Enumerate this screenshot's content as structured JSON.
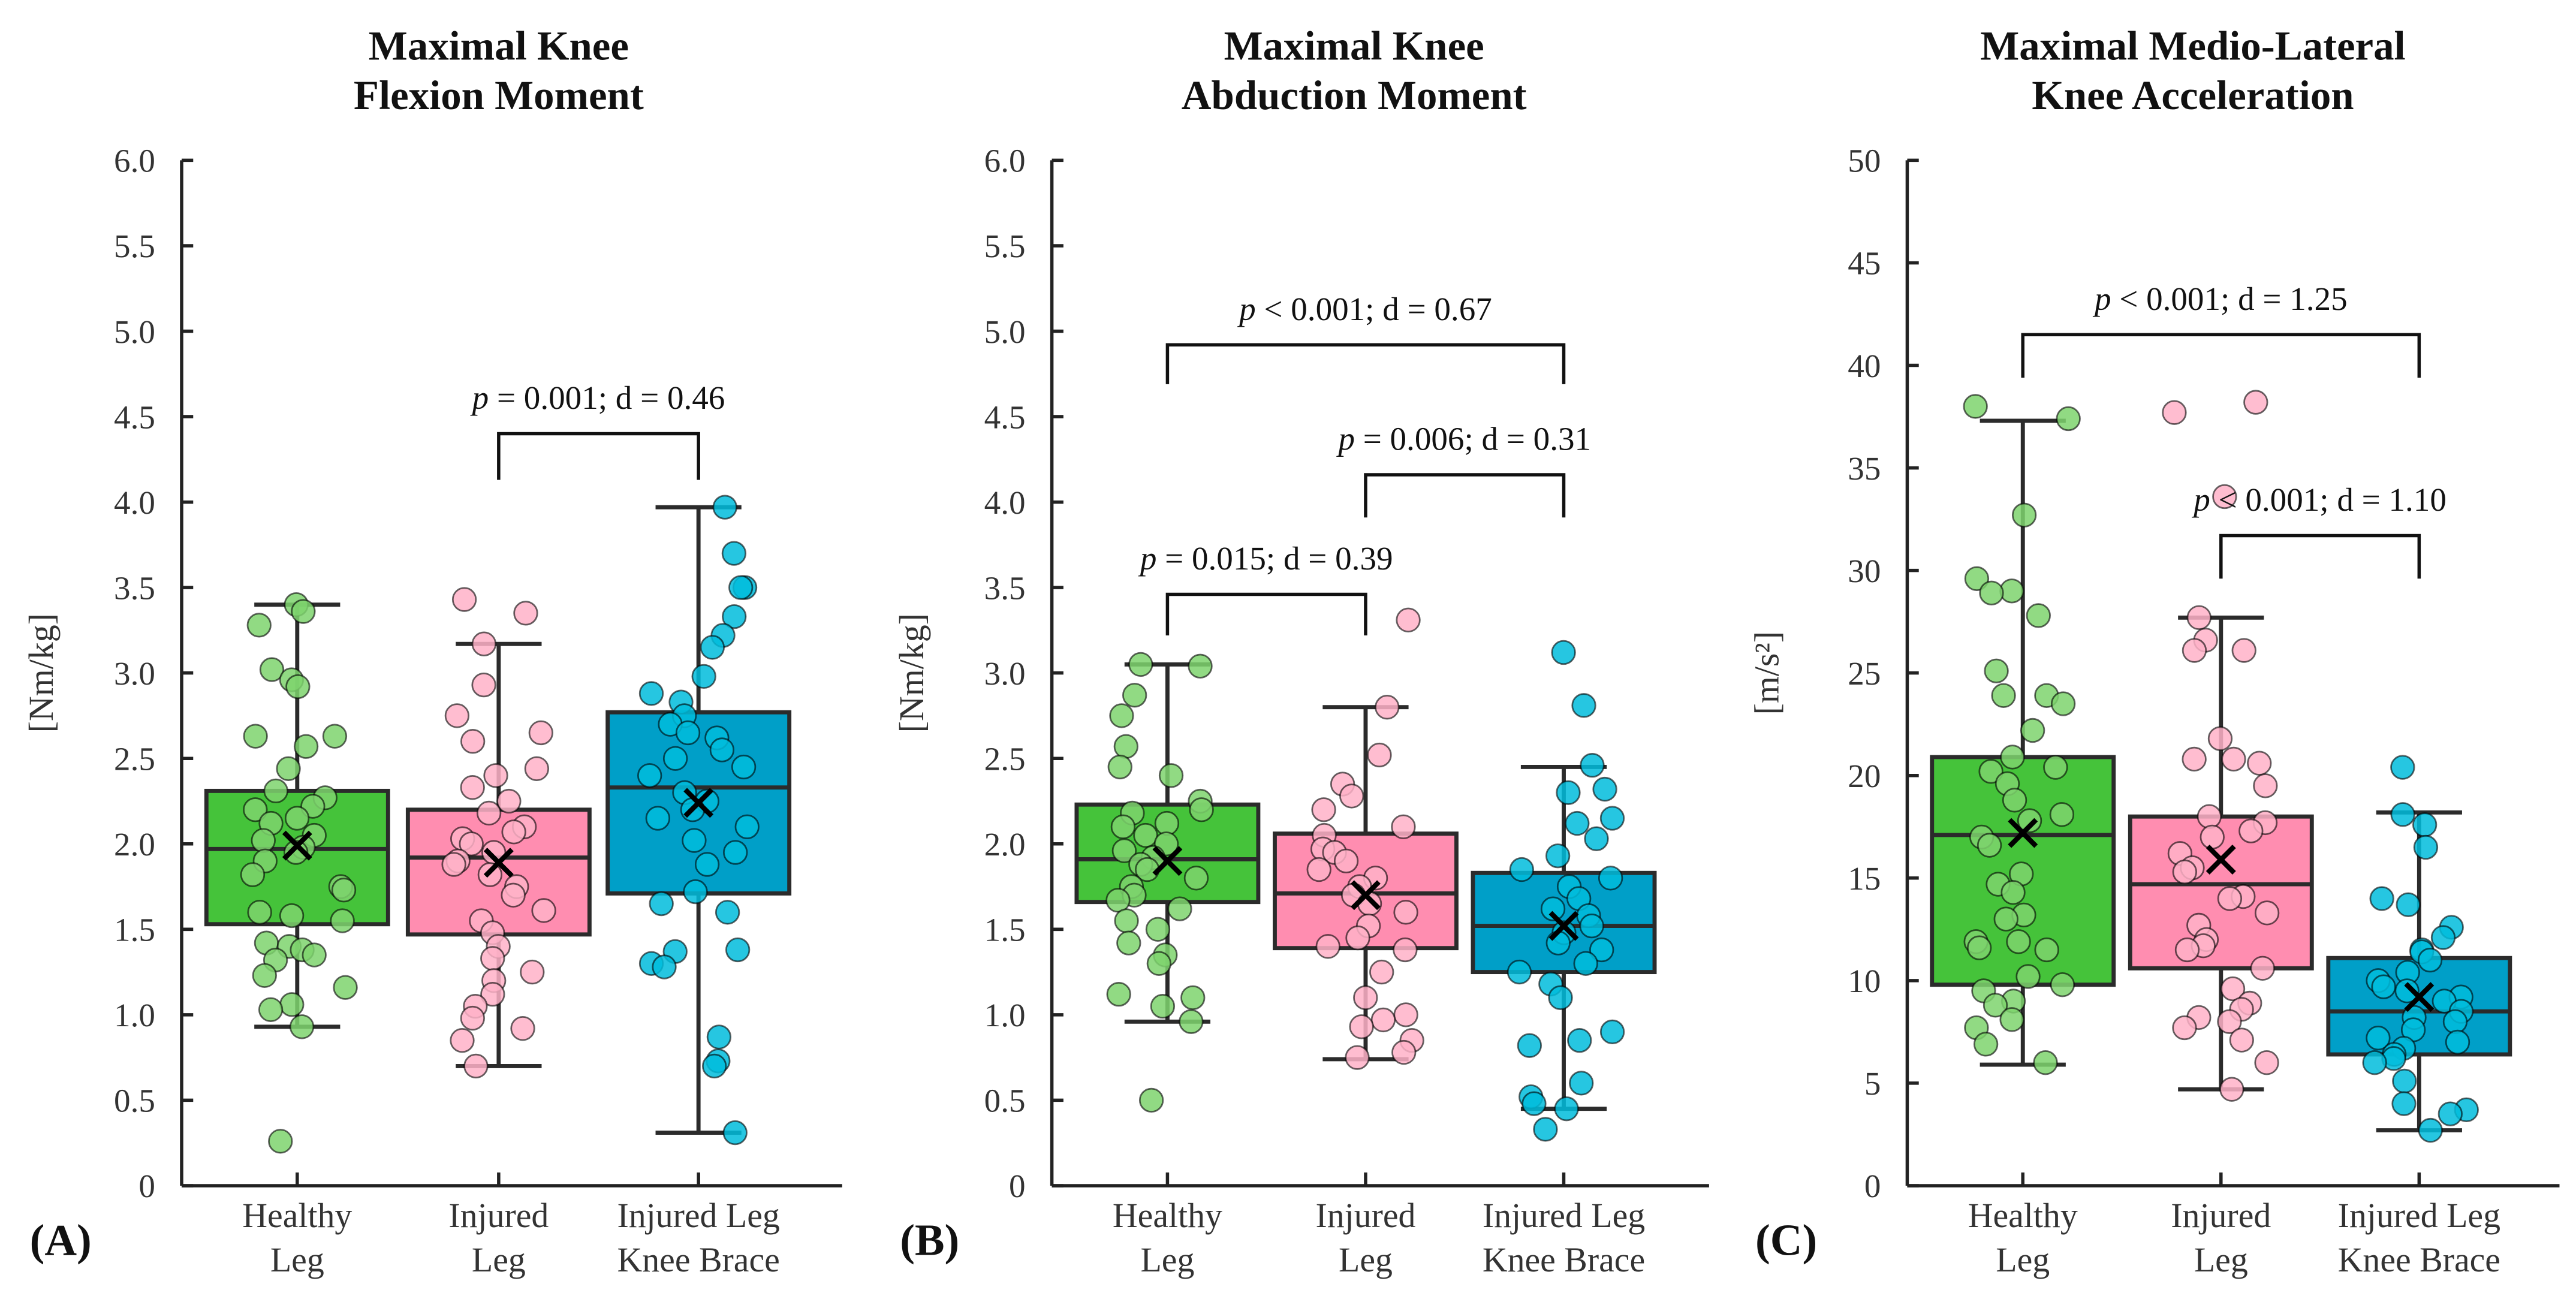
{
  "chart_data": [
    {
      "type": "box",
      "panel_label": "(A)",
      "title": [
        "Maximal Knee",
        "Flexion Moment"
      ],
      "ylabel": "[Nm/kg]",
      "ylim": [
        0,
        6.0
      ],
      "yticks": [
        "0",
        "0.5",
        "1.0",
        "1.5",
        "2.0",
        "2.5",
        "3.0",
        "3.5",
        "4.0",
        "4.5",
        "5.0",
        "5.5",
        "6.0"
      ],
      "ytick_values": [
        0,
        0.5,
        1,
        1.5,
        2,
        2.5,
        3,
        3.5,
        4,
        4.5,
        5,
        5.5,
        6
      ],
      "categories": [
        [
          "Healthy",
          "Leg"
        ],
        [
          "Injured",
          "Leg"
        ],
        [
          "Injured Leg",
          "Knee Brace"
        ]
      ],
      "groups": [
        {
          "min": 0.93,
          "q1": 1.53,
          "median": 1.97,
          "q3": 2.31,
          "max": 3.4,
          "mean": 1.99,
          "points": [
            3.4,
            3.36,
            3.28,
            3.02,
            2.96,
            2.92,
            2.63,
            2.63,
            2.57,
            2.44,
            2.31,
            2.27,
            2.22,
            2.2,
            2.15,
            2.12,
            2.05,
            2.02,
            1.98,
            1.95,
            1.9,
            1.82,
            1.75,
            1.73,
            1.6,
            1.58,
            1.55,
            1.42,
            1.4,
            1.38,
            1.35,
            1.32,
            1.23,
            1.16,
            1.06,
            1.03,
            0.93,
            0.26
          ]
        },
        {
          "min": 0.7,
          "q1": 1.47,
          "median": 1.92,
          "q3": 2.2,
          "max": 3.17,
          "mean": 1.89,
          "points": [
            3.43,
            3.35,
            3.17,
            2.93,
            2.75,
            2.65,
            2.6,
            2.44,
            2.4,
            2.33,
            2.25,
            2.18,
            2.1,
            2.07,
            2.03,
            2.0,
            1.95,
            1.9,
            1.88,
            1.82,
            1.75,
            1.7,
            1.61,
            1.55,
            1.48,
            1.4,
            1.33,
            1.25,
            1.2,
            1.12,
            1.05,
            0.98,
            0.92,
            0.85,
            0.7
          ]
        },
        {
          "min": 0.31,
          "q1": 1.71,
          "median": 2.33,
          "q3": 2.77,
          "max": 3.97,
          "mean": 2.24,
          "points": [
            3.97,
            3.7,
            3.5,
            3.5,
            3.33,
            3.22,
            3.15,
            2.98,
            2.88,
            2.83,
            2.75,
            2.7,
            2.65,
            2.62,
            2.55,
            2.5,
            2.45,
            2.4,
            2.3,
            2.25,
            2.2,
            2.15,
            2.1,
            2.02,
            1.95,
            1.88,
            1.72,
            1.65,
            1.6,
            1.38,
            1.37,
            1.3,
            1.28,
            0.87,
            0.73,
            0.7,
            0.31
          ]
        }
      ],
      "annotations": [
        {
          "from": 1,
          "to": 2,
          "top": 4.4,
          "bottom": 4.13,
          "p_label": "p",
          "text": " = 0.001; d = 0.46"
        }
      ]
    },
    {
      "type": "box",
      "panel_label": "(B)",
      "title": [
        "Maximal Knee",
        "Abduction Moment"
      ],
      "ylabel": "[Nm/kg]",
      "ylim": [
        0,
        6.0
      ],
      "yticks": [
        "0",
        "0.5",
        "1.0",
        "1.5",
        "2.0",
        "2.5",
        "3.0",
        "3.5",
        "4.0",
        "4.5",
        "5.0",
        "5.5",
        "6.0"
      ],
      "ytick_values": [
        0,
        0.5,
        1,
        1.5,
        2,
        2.5,
        3,
        3.5,
        4,
        4.5,
        5,
        5.5,
        6
      ],
      "categories": [
        [
          "Healthy",
          "Leg"
        ],
        [
          "Injured",
          "Leg"
        ],
        [
          "Injured Leg",
          "Knee Brace"
        ]
      ],
      "groups": [
        {
          "min": 0.96,
          "q1": 1.66,
          "median": 1.91,
          "q3": 2.23,
          "max": 3.05,
          "mean": 1.9,
          "points": [
            3.05,
            3.04,
            2.87,
            2.75,
            2.57,
            2.45,
            2.4,
            2.25,
            2.2,
            2.18,
            2.12,
            2.1,
            2.05,
            2.0,
            1.96,
            1.92,
            1.88,
            1.85,
            1.8,
            1.75,
            1.7,
            1.67,
            1.62,
            1.55,
            1.5,
            1.42,
            1.35,
            1.3,
            1.12,
            1.1,
            1.05,
            0.96,
            0.5
          ]
        },
        {
          "min": 0.74,
          "q1": 1.39,
          "median": 1.71,
          "q3": 2.06,
          "max": 2.8,
          "mean": 1.7,
          "points": [
            3.31,
            2.8,
            2.52,
            2.35,
            2.28,
            2.2,
            2.1,
            2.05,
            1.97,
            1.95,
            1.9,
            1.85,
            1.8,
            1.75,
            1.7,
            1.65,
            1.6,
            1.52,
            1.45,
            1.4,
            1.38,
            1.25,
            1.1,
            1.0,
            0.97,
            0.93,
            0.85,
            0.78,
            0.75
          ]
        },
        {
          "min": 0.45,
          "q1": 1.25,
          "median": 1.52,
          "q3": 1.83,
          "max": 2.45,
          "mean": 1.52,
          "points": [
            3.12,
            2.81,
            2.46,
            2.32,
            2.3,
            2.15,
            2.12,
            2.03,
            1.93,
            1.85,
            1.8,
            1.75,
            1.68,
            1.62,
            1.58,
            1.52,
            1.48,
            1.42,
            1.38,
            1.3,
            1.25,
            1.18,
            1.1,
            0.9,
            0.85,
            0.82,
            0.6,
            0.52,
            0.48,
            0.45,
            0.33
          ]
        }
      ],
      "annotations": [
        {
          "from": 0,
          "to": 1,
          "top": 3.46,
          "bottom": 3.22,
          "p_label": "p",
          "text": " = 0.015; d = 0.39"
        },
        {
          "from": 1,
          "to": 2,
          "top": 4.16,
          "bottom": 3.91,
          "p_label": "p",
          "text": " = 0.006; d = 0.31"
        },
        {
          "from": 0,
          "to": 2,
          "top": 4.92,
          "bottom": 4.69,
          "p_label": "p",
          "text": " < 0.001; d = 0.67"
        }
      ]
    },
    {
      "type": "box",
      "panel_label": "(C)",
      "title": [
        "Maximal Medio-Lateral",
        "Knee Acceleration"
      ],
      "ylabel": "[m/s²]",
      "ylim": [
        0,
        50
      ],
      "yticks": [
        "0",
        "5",
        "10",
        "15",
        "20",
        "25",
        "30",
        "35",
        "40",
        "45",
        "50"
      ],
      "ytick_values": [
        0,
        5,
        10,
        15,
        20,
        25,
        30,
        35,
        40,
        45,
        50
      ],
      "categories": [
        [
          "Healthy",
          "Leg"
        ],
        [
          "Injured",
          "Leg"
        ],
        [
          "Injured Leg",
          "Knee Brace"
        ]
      ],
      "groups": [
        {
          "min": 5.9,
          "q1": 9.8,
          "median": 17.1,
          "q3": 20.9,
          "max": 37.3,
          "mean": 17.2,
          "points": [
            38.0,
            37.4,
            32.7,
            29.6,
            29.0,
            28.9,
            27.8,
            25.1,
            23.9,
            23.9,
            23.5,
            22.2,
            20.9,
            20.4,
            20.2,
            19.6,
            18.8,
            18.1,
            17.8,
            17.0,
            16.6,
            15.2,
            14.7,
            14.3,
            13.2,
            13.0,
            11.9,
            11.6,
            11.5,
            11.9,
            10.2,
            9.8,
            9.5,
            9.0,
            8.8,
            8.1,
            7.7,
            6.9,
            6.0
          ]
        },
        {
          "min": 4.7,
          "q1": 10.6,
          "median": 14.7,
          "q3": 18.0,
          "max": 27.7,
          "mean": 15.9,
          "points": [
            38.2,
            37.7,
            33.6,
            27.7,
            26.6,
            26.1,
            26.1,
            21.8,
            20.8,
            20.8,
            20.6,
            19.5,
            18.0,
            17.7,
            17.3,
            17.0,
            16.2,
            15.5,
            15.3,
            14.1,
            14.0,
            13.3,
            12.7,
            12.0,
            11.7,
            11.5,
            10.6,
            9.6,
            8.9,
            8.6,
            8.2,
            8.0,
            7.7,
            7.1,
            6.0,
            4.7
          ]
        },
        {
          "min": 2.7,
          "q1": 6.4,
          "median": 8.5,
          "q3": 11.1,
          "max": 18.2,
          "mean": 9.2,
          "points": [
            20.4,
            18.1,
            17.6,
            16.5,
            14.0,
            13.7,
            12.6,
            12.1,
            11.5,
            11.4,
            11.0,
            10.4,
            10.0,
            9.7,
            9.5,
            9.2,
            9.0,
            8.5,
            8.2,
            8.0,
            7.6,
            7.2,
            7.0,
            6.7,
            6.4,
            6.2,
            6.0,
            5.1,
            4.0,
            3.7,
            3.5,
            2.7
          ]
        }
      ],
      "annotations": [
        {
          "from": 0,
          "to": 2,
          "top": 41.5,
          "bottom": 39.4,
          "p_label": "p",
          "text": " < 0.001; d = 1.25"
        },
        {
          "from": 1,
          "to": 2,
          "top": 31.7,
          "bottom": 29.6,
          "p_label": "p",
          "text": " < 0.001; d = 1.10"
        }
      ]
    }
  ],
  "colors": {
    "box": [
      "#45c33a",
      "#ff8db0",
      "#009fc8"
    ],
    "points": [
      "#7ed36d",
      "#ffb2c8",
      "#00bcdc"
    ],
    "outline": "#2b2b2b",
    "mean": "#000000"
  }
}
